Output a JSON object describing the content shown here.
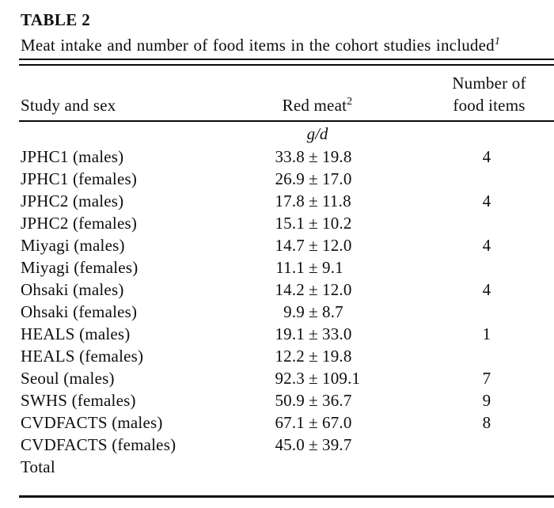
{
  "table": {
    "label": "TABLE 2",
    "caption": "Meat intake and number of food items in the cohort studies included",
    "caption_footnote": "1",
    "columns": {
      "study": "Study and sex",
      "red_meat": "Red meat",
      "red_meat_footnote": "2",
      "food_items_line1": "Number of",
      "food_items_line2": "food items"
    },
    "unit": "g/d",
    "rows": [
      {
        "study": "JPHC1 (males)",
        "mean": "33.8",
        "pm": "±",
        "sd": "19.8",
        "items": "4"
      },
      {
        "study": "JPHC1 (females)",
        "mean": "26.9",
        "pm": "±",
        "sd": "17.0",
        "items": ""
      },
      {
        "study": "JPHC2 (males)",
        "mean": "17.8",
        "pm": "±",
        "sd": "11.8",
        "items": "4"
      },
      {
        "study": "JPHC2 (females)",
        "mean": "15.1",
        "pm": "±",
        "sd": "10.2",
        "items": ""
      },
      {
        "study": "Miyagi (males)",
        "mean": "14.7",
        "pm": "±",
        "sd": "12.0",
        "items": "4"
      },
      {
        "study": "Miyagi (females)",
        "mean": "11.1",
        "pm": "±",
        "sd": "9.1",
        "items": ""
      },
      {
        "study": "Ohsaki (males)",
        "mean": "14.2",
        "pm": "±",
        "sd": "12.0",
        "items": "4"
      },
      {
        "study": "Ohsaki (females)",
        "mean": "9.9",
        "pm": "±",
        "sd": "8.7",
        "items": ""
      },
      {
        "study": "HEALS (males)",
        "mean": "19.1",
        "pm": "±",
        "sd": "33.0",
        "items": "1"
      },
      {
        "study": "HEALS (females)",
        "mean": "12.2",
        "pm": "±",
        "sd": "19.8",
        "items": ""
      },
      {
        "study": "Seoul (males)",
        "mean": "92.3",
        "pm": "±",
        "sd": "109.1",
        "items": "7"
      },
      {
        "study": "SWHS (females)",
        "mean": "50.9",
        "pm": "±",
        "sd": "36.7",
        "items": "9"
      },
      {
        "study": "CVDFACTS (males)",
        "mean": "67.1",
        "pm": "±",
        "sd": "67.0",
        "items": "8"
      },
      {
        "study": "CVDFACTS (females)",
        "mean": "45.0",
        "pm": "±",
        "sd": "39.7",
        "items": ""
      },
      {
        "study": "Total",
        "mean": "",
        "pm": "",
        "sd": "",
        "items": ""
      }
    ],
    "text_color": "#0e0e0e",
    "rule_color": "#0a0a0a",
    "background_color": "#ffffff"
  }
}
